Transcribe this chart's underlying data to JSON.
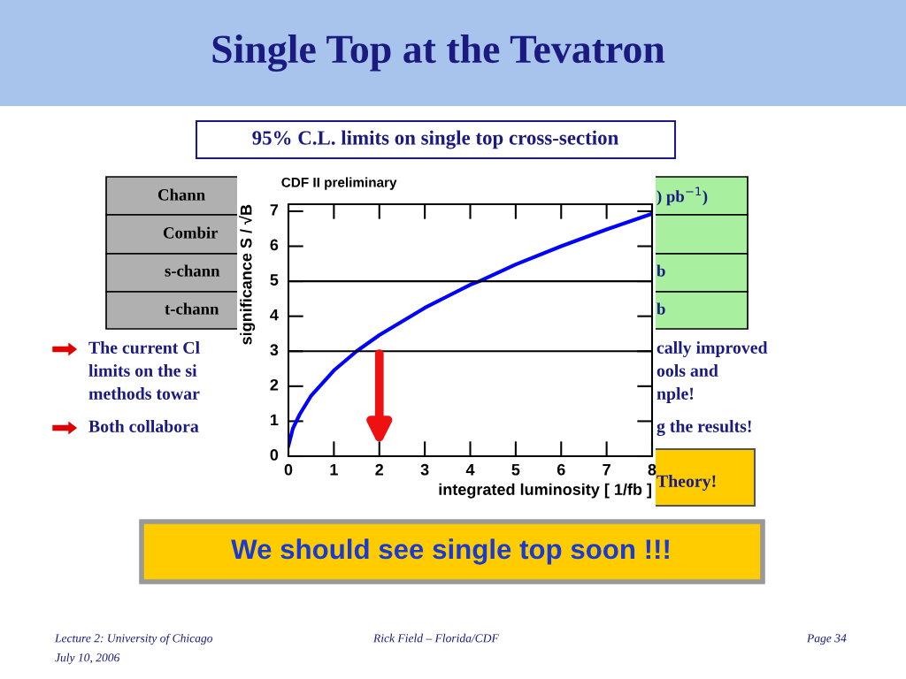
{
  "chart_data": {
    "type": "line",
    "title": "CDF II preliminary",
    "xlabel": "integrated luminosity [ 1/fb ]",
    "ylabel": "significance S / √B",
    "x": [
      0,
      0.1,
      0.25,
      0.5,
      1,
      1.5,
      2,
      3,
      4,
      4.2,
      5,
      6,
      7,
      8
    ],
    "series": [
      {
        "color": "#0000ff",
        "values": [
          0.3,
          0.8,
          1.2,
          1.73,
          2.45,
          3.0,
          3.46,
          4.24,
          4.9,
          5.0,
          5.48,
          6.0,
          6.48,
          6.93
        ]
      }
    ],
    "xlim": [
      0,
      8
    ],
    "xticks": [
      0,
      1,
      2,
      3,
      4,
      5,
      6,
      7,
      8
    ],
    "ylim": [
      0,
      7.2
    ],
    "yticks": [
      0,
      1,
      2,
      3,
      4,
      5,
      6,
      7
    ],
    "ref_lines": [
      {
        "axis": "y",
        "value": 3,
        "color": "#000000"
      },
      {
        "axis": "y",
        "value": 5,
        "color": "#000000"
      }
    ],
    "grid": false,
    "legend": false,
    "marker": "none",
    "line_style": "solid",
    "annotations": [
      "Single Top at the Tevatron",
      "95% C.L. limits on single top cross-section",
      "Chann",
      "Combir",
      "s-chann",
      "t-chann",
      ") pb$^{−1}$)",
      "b",
      "b",
      "The current Cl",
      "cally improved",
      "limits on the si",
      "ools and",
      "methods towar",
      "nple!",
      "Both collabora",
      "g the results!",
      "Theory!",
      "We should see single top soon !!!",
      "Lecture 2: University of Chicago",
      "July 10, 2006",
      "Rick Field – Florida/CDF",
      "Page 34"
    ]
  }
}
